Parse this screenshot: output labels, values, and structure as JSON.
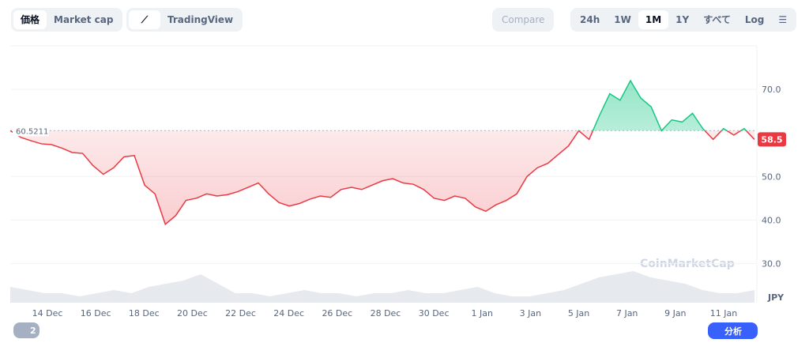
{
  "toolbar": {
    "tabs": [
      "価格",
      "Market cap"
    ],
    "view": "TradingView",
    "compare": "Compare",
    "ranges": [
      "24h",
      "1W",
      "1M",
      "1Y",
      "すべて"
    ],
    "log": "Log"
  },
  "footer": {
    "badge": "2",
    "analysis": "分析"
  },
  "chart_data": {
    "type": "line",
    "watermark": "CoinMarketCap",
    "currency": "JPY",
    "x_labels": [
      "14 Dec",
      "16 Dec",
      "18 Dec",
      "20 Dec",
      "22 Dec",
      "24 Dec",
      "26 Dec",
      "28 Dec",
      "30 Dec",
      "1 Jan",
      "3 Jan",
      "5 Jan",
      "7 Jan",
      "9 Jan",
      "11 Jan"
    ],
    "baseline": 60.5211,
    "series": [
      {
        "values": [
          60.5,
          59,
          58.2,
          57.5,
          57.3,
          56.5,
          55.5,
          55.3,
          52.5,
          50.5,
          52,
          54.5,
          54.8,
          48,
          46,
          39,
          41,
          44.5,
          45,
          46,
          45.5,
          45.8,
          46.5,
          47.5,
          48.5,
          46,
          44,
          43.2,
          43.8,
          44.8,
          45.5,
          45.2,
          47,
          47.5,
          47,
          48,
          49,
          49.5,
          48.5,
          48.2,
          47,
          45,
          44.5,
          45.5,
          45,
          43,
          42,
          43.5,
          44.5,
          46,
          50,
          52,
          53,
          55,
          57,
          60.5,
          58.5,
          64,
          69,
          67.5,
          72,
          68,
          66,
          60.5,
          63,
          62.5,
          64.5,
          61,
          58.5,
          61,
          59.5,
          61,
          58.5
        ]
      }
    ],
    "volume": [
      5,
      4,
      3,
      3,
      2,
      3,
      4,
      3,
      5,
      6,
      7,
      9,
      6,
      3,
      3,
      2,
      3,
      4,
      3,
      3,
      2,
      3,
      3,
      4,
      3,
      3,
      4,
      5,
      3,
      2,
      2,
      3,
      4,
      6,
      8,
      9,
      10,
      8,
      7,
      6,
      4,
      3,
      3,
      4
    ],
    "ylim": [
      21,
      80
    ],
    "yticks": [
      {
        "value": 30,
        "label": "30.0"
      },
      {
        "value": 40,
        "label": "40.0"
      },
      {
        "value": 50,
        "label": "50.0"
      },
      {
        "value": 70,
        "label": "70.0"
      }
    ],
    "grid": true,
    "up_color": "#16c784",
    "down_color": "#ea3943"
  }
}
